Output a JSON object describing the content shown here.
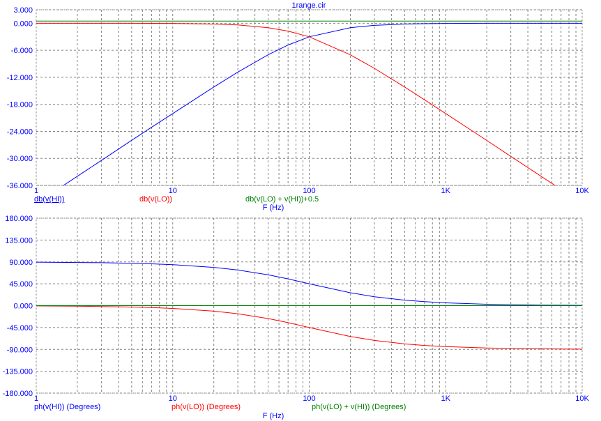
{
  "title": "1range.cir",
  "colors": {
    "axis_text": "#0000ff",
    "grid": "#808080",
    "blue": "#0000ff",
    "red": "#ff0000",
    "green": "#008000",
    "background": "#ffffff"
  },
  "chart_data": [
    {
      "type": "line",
      "title": "1range.cir",
      "xlabel": "F (Hz)",
      "xscale": "log",
      "xlim": [
        1,
        10000
      ],
      "ylim": [
        -36,
        3
      ],
      "grid": true,
      "x_tick_labels": [
        "1",
        "10",
        "100",
        "1K",
        "10K"
      ],
      "x_ticks": [
        1,
        10,
        100,
        1000,
        10000
      ],
      "y_ticks": [
        3,
        0,
        -6,
        -12,
        -18,
        -24,
        -30,
        -36
      ],
      "y_tick_labels": [
        "3.000",
        "0.000",
        "-6.000",
        "-12.000",
        "-18.000",
        "-24.000",
        "-30.000",
        "-36.000"
      ],
      "x": [
        1,
        2,
        3,
        5,
        7,
        10,
        20,
        30,
        50,
        70,
        100,
        200,
        300,
        500,
        700,
        1000,
        2000,
        3000,
        5000,
        7000,
        10000
      ],
      "series": [
        {
          "name": "db(v(HI))",
          "color": "#0000ff",
          "underlined": true,
          "values": [
            -40.0,
            -33.98,
            -30.46,
            -25.98,
            -23.1,
            -20.04,
            -14.15,
            -10.83,
            -6.99,
            -4.83,
            -3.01,
            -0.97,
            -0.46,
            -0.17,
            -0.09,
            -0.04,
            -0.01,
            0,
            0,
            0,
            0
          ]
        },
        {
          "name": "db(v(LO))",
          "color": "#ff0000",
          "values": [
            0,
            0,
            0,
            -0.01,
            -0.02,
            -0.04,
            -0.17,
            -0.37,
            -0.97,
            -1.73,
            -3.01,
            -6.99,
            -10.0,
            -14.15,
            -16.99,
            -20.04,
            -26.02,
            -29.54,
            -33.98,
            -36.9,
            -40.0
          ]
        },
        {
          "name": "db(v(LO) + v(HI))+0.5",
          "color": "#008000",
          "values": [
            0.5,
            0.5,
            0.5,
            0.5,
            0.5,
            0.5,
            0.5,
            0.5,
            0.5,
            0.5,
            0.5,
            0.5,
            0.5,
            0.5,
            0.5,
            0.5,
            0.5,
            0.5,
            0.5,
            0.5,
            0.5
          ]
        }
      ]
    },
    {
      "type": "line",
      "xlabel": "F (Hz)",
      "xscale": "log",
      "xlim": [
        1,
        10000
      ],
      "ylim": [
        -180,
        180
      ],
      "grid": true,
      "x_tick_labels": [
        "1",
        "10",
        "100",
        "1K",
        "10K"
      ],
      "x_ticks": [
        1,
        10,
        100,
        1000,
        10000
      ],
      "y_ticks": [
        180,
        135,
        90,
        45,
        0,
        -45,
        -90,
        -135,
        -180
      ],
      "y_tick_labels": [
        "180.000",
        "135.000",
        "90.000",
        "45.000",
        "0.000",
        "-45.000",
        "-90.000",
        "-135.000",
        "-180.000"
      ],
      "x": [
        1,
        2,
        3,
        5,
        7,
        10,
        20,
        30,
        50,
        70,
        100,
        200,
        300,
        500,
        700,
        1000,
        2000,
        3000,
        5000,
        7000,
        10000
      ],
      "series": [
        {
          "name": "ph(v(HI)) (Degrees)",
          "color": "#0000ff",
          "values": [
            89.43,
            88.85,
            88.28,
            87.14,
            86.0,
            84.29,
            78.69,
            73.3,
            63.43,
            55.01,
            45.0,
            26.57,
            18.43,
            11.31,
            8.13,
            5.71,
            2.86,
            1.91,
            1.15,
            0.82,
            0.57
          ]
        },
        {
          "name": "ph(v(LO)) (Degrees)",
          "color": "#ff0000",
          "values": [
            -0.57,
            -1.15,
            -1.72,
            -2.86,
            -4.0,
            -5.71,
            -11.31,
            -16.7,
            -26.57,
            -34.99,
            -45.0,
            -63.43,
            -71.57,
            -78.69,
            -81.87,
            -84.29,
            -87.14,
            -88.09,
            -88.85,
            -89.18,
            -89.43
          ]
        },
        {
          "name": "ph(v(LO) + v(HI)) (Degrees)",
          "color": "#008000",
          "values": [
            0,
            0,
            0,
            0,
            0,
            0,
            0,
            0,
            0,
            0,
            0,
            0,
            0,
            0,
            0,
            0,
            0,
            0,
            0,
            0,
            0
          ]
        }
      ]
    }
  ]
}
